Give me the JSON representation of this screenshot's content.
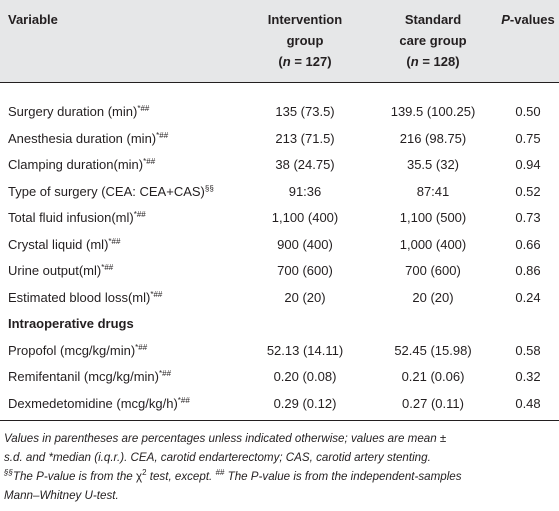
{
  "table": {
    "header": [
      {
        "lines": [
          [
            {
              "text": "Variable"
            }
          ]
        ]
      },
      {
        "lines": [
          [
            {
              "text": "Intervention"
            }
          ],
          [
            {
              "text": "group"
            }
          ],
          [
            {
              "text": "("
            },
            {
              "text": "n",
              "italic": true
            },
            {
              "text": " = 127)"
            }
          ]
        ]
      },
      {
        "lines": [
          [
            {
              "text": "Standard"
            }
          ],
          [
            {
              "text": "care group"
            }
          ],
          [
            {
              "text": "("
            },
            {
              "text": "n",
              "italic": true
            },
            {
              "text": " = 128)"
            }
          ]
        ]
      },
      {
        "lines": [
          [
            {
              "text": "P",
              "italic": true
            },
            {
              "text": "-values"
            }
          ]
        ]
      }
    ],
    "rows": [
      {
        "variable": "Surgery duration (min)",
        "mark": "*##",
        "intervention": "135 (73.5)",
        "standard": "139.5 (100.25)",
        "p": "0.50"
      },
      {
        "variable": "Anesthesia duration (min)",
        "mark": "*##",
        "intervention": "213 (71.5)",
        "standard": "216 (98.75)",
        "p": "0.75"
      },
      {
        "variable": "Clamping duration(min)",
        "mark": "*##",
        "intervention": "38 (24.75)",
        "standard": "35.5 (32)",
        "p": "0.94"
      },
      {
        "variable": "Type of surgery (CEA: CEA+CAS)",
        "mark": "§§",
        "intervention": "91:36",
        "standard": "87:41",
        "p": "0.52"
      },
      {
        "variable": "Total fluid infusion(ml)",
        "mark": "*##",
        "intervention": "1,100 (400)",
        "standard": "1,100 (500)",
        "p": "0.73"
      },
      {
        "variable": "Crystal liquid (ml)",
        "mark": "*##",
        "intervention": "900 (400)",
        "standard": "1,000 (400)",
        "p": "0.66"
      },
      {
        "variable": "Urine output(ml)",
        "mark": "*##",
        "intervention": "700 (600)",
        "standard": "700 (600)",
        "p": "0.86"
      },
      {
        "variable": "Estimated blood loss(ml)",
        "mark": "*##",
        "intervention": "20 (20)",
        "standard": "20 (20)",
        "p": "0.24"
      },
      {
        "section": "Intraoperative drugs"
      },
      {
        "variable": "Propofol (mcg/kg/min)",
        "mark": "*##",
        "intervention": "52.13 (14.11)",
        "standard": "52.45 (15.98)",
        "p": "0.58"
      },
      {
        "variable": "Remifentanil (mcg/kg/min)",
        "mark": "*##",
        "intervention": "0.20 (0.08)",
        "standard": "0.21 (0.06)",
        "p": "0.32"
      },
      {
        "variable": "Dexmedetomidine (mcg/kg/h)",
        "mark": "*##",
        "intervention": "0.29 (0.12)",
        "standard": "0.27 (0.11)",
        "p": "0.48"
      }
    ],
    "footnote": [
      [
        {
          "text": "Values in parentheses are percentages unless indicated otherwise; values are mean ±"
        }
      ],
      [
        {
          "text": "s.d. and *median (i.q.r.). CEA, carotid endarterectomy; CAS, carotid artery stenting."
        }
      ],
      [
        {
          "text": "§§",
          "sup": true
        },
        {
          "text": "The P-value is from the "
        },
        {
          "text": "χ",
          "italic": false
        },
        {
          "text": "2",
          "sup": true,
          "italic": false
        },
        {
          "text": " test, except. "
        },
        {
          "text": "##",
          "sup": true
        },
        {
          "text": " The P-value is from the independent-samples"
        }
      ],
      [
        {
          "text": "Mann–Whitney U-test."
        }
      ]
    ]
  }
}
